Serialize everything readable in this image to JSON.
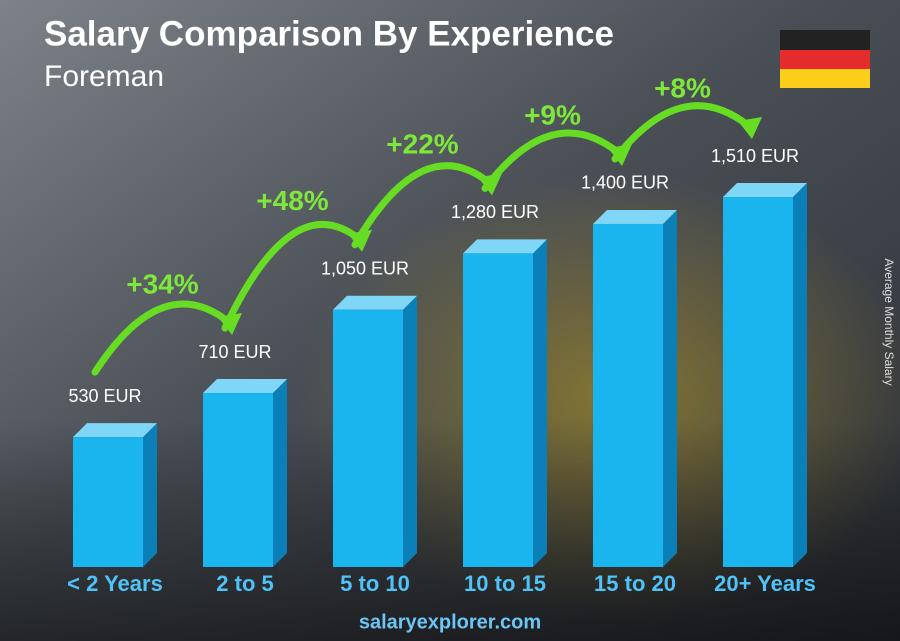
{
  "chart_data": {
    "type": "bar3d",
    "title": "Salary Comparison By Experience",
    "subtitle": "Foreman",
    "y_axis_label": "Average Monthly Salary",
    "categories": [
      "< 2 Years",
      "2 to 5",
      "5 to 10",
      "10 to 15",
      "15 to 20",
      "20+ Years"
    ],
    "values": [
      530,
      710,
      1050,
      1280,
      1400,
      1510
    ],
    "value_labels": [
      "530 EUR",
      "710 EUR",
      "1,050 EUR",
      "1,280 EUR",
      "1,400 EUR",
      "1,510 EUR"
    ],
    "changes": [
      "+34%",
      "+48%",
      "+22%",
      "+9%",
      "+8%"
    ],
    "color": "#1ab4ee",
    "source": "salaryexplorer.com"
  }
}
